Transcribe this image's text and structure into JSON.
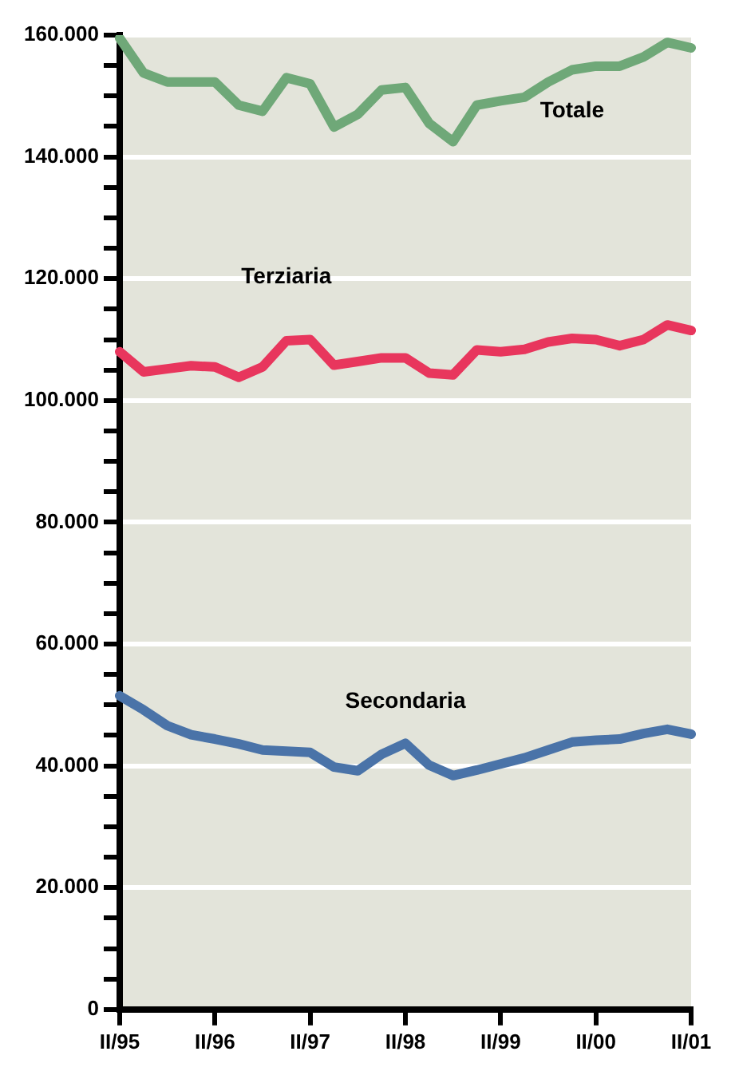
{
  "chart_data": {
    "type": "line",
    "categories": [
      "II/95",
      null,
      null,
      null,
      "II/96",
      null,
      null,
      null,
      "II/97",
      null,
      null,
      null,
      "II/98",
      null,
      null,
      null,
      "II/99",
      null,
      null,
      null,
      "II/00",
      null,
      null,
      null,
      "II/01"
    ],
    "series": [
      {
        "name": "Totale",
        "color": "#6fa878",
        "values": [
          159500,
          153800,
          152300,
          152300,
          152300,
          148500,
          147500,
          153000,
          152000,
          144900,
          147000,
          151000,
          151400,
          145500,
          142500,
          148500,
          149200,
          149800,
          152300,
          154300,
          154900,
          154900,
          156400,
          158800,
          157900
        ]
      },
      {
        "name": "Terziaria",
        "color": "#e8365d",
        "values": [
          108000,
          104700,
          105200,
          105700,
          105500,
          103800,
          105500,
          109800,
          110000,
          105800,
          106400,
          107000,
          107000,
          104500,
          104200,
          108300,
          108000,
          108400,
          109600,
          110200,
          110000,
          109000,
          110000,
          112400,
          111500
        ]
      },
      {
        "name": "Secondaria",
        "color": "#4a73a8",
        "values": [
          51500,
          49200,
          46600,
          45100,
          44400,
          43600,
          42600,
          42400,
          42200,
          39800,
          39200,
          41900,
          43700,
          40100,
          38400,
          39300,
          40300,
          41300,
          42600,
          43900,
          44200,
          44400,
          45300,
          46000,
          45200
        ]
      }
    ],
    "ylim": [
      0,
      160000
    ],
    "yticks": [
      {
        "value": 0,
        "label": "0"
      },
      {
        "value": 5000,
        "label": null
      },
      {
        "value": 10000,
        "label": null
      },
      {
        "value": 15000,
        "label": null
      },
      {
        "value": 20000,
        "label": "20.000"
      },
      {
        "value": 25000,
        "label": null
      },
      {
        "value": 30000,
        "label": null
      },
      {
        "value": 35000,
        "label": null
      },
      {
        "value": 40000,
        "label": "40.000"
      },
      {
        "value": 45000,
        "label": null
      },
      {
        "value": 50000,
        "label": null
      },
      {
        "value": 55000,
        "label": null
      },
      {
        "value": 60000,
        "label": "60.000"
      },
      {
        "value": 65000,
        "label": null
      },
      {
        "value": 70000,
        "label": null
      },
      {
        "value": 75000,
        "label": null
      },
      {
        "value": 80000,
        "label": "80.000"
      },
      {
        "value": 85000,
        "label": null
      },
      {
        "value": 90000,
        "label": null
      },
      {
        "value": 95000,
        "label": null
      },
      {
        "value": 100000,
        "label": "100.000"
      },
      {
        "value": 105000,
        "label": null
      },
      {
        "value": 110000,
        "label": null
      },
      {
        "value": 115000,
        "label": null
      },
      {
        "value": 120000,
        "label": "120.000"
      },
      {
        "value": 125000,
        "label": null
      },
      {
        "value": 130000,
        "label": null
      },
      {
        "value": 135000,
        "label": null
      },
      {
        "value": 140000,
        "label": "140.000"
      },
      {
        "value": 145000,
        "label": null
      },
      {
        "value": 150000,
        "label": null
      },
      {
        "value": 155000,
        "label": null
      },
      {
        "value": 160000,
        "label": "160.000"
      }
    ],
    "grid": "y",
    "legend": false,
    "marker": "none",
    "line_style": "solid"
  }
}
